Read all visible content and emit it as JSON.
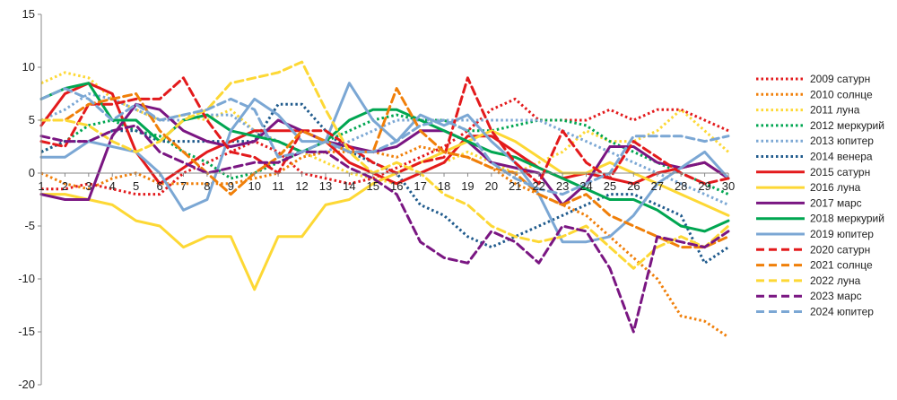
{
  "chart_data": {
    "type": "line",
    "title": "",
    "xlabel": "",
    "ylabel": "",
    "x": [
      1,
      2,
      3,
      4,
      5,
      6,
      7,
      8,
      9,
      10,
      11,
      12,
      13,
      14,
      15,
      16,
      17,
      18,
      19,
      20,
      21,
      22,
      23,
      24,
      25,
      26,
      27,
      28,
      29,
      30
    ],
    "xlim": [
      1,
      30
    ],
    "ylim": [
      -20,
      15
    ],
    "yticks": [
      15,
      10,
      5,
      0,
      -5,
      -10,
      -15,
      -20
    ],
    "grid": false,
    "legend_position": "right",
    "series": [
      {
        "name": "2009 сатурн",
        "color": "#e31a1c",
        "dash": "dot",
        "values": [
          -1.5,
          -1.5,
          -1,
          -1.5,
          -2,
          -2,
          0,
          1,
          2,
          3,
          2,
          0,
          -0.5,
          -1,
          -0.5,
          0.5,
          1.5,
          2.5,
          4,
          6,
          7,
          5,
          5,
          5,
          6,
          5,
          6,
          6,
          5,
          4
        ]
      },
      {
        "name": "2010 солнце",
        "color": "#f07f09",
        "dash": "dot",
        "values": [
          0,
          -1,
          -1.5,
          -0.5,
          0,
          -1,
          -1,
          -1,
          -1,
          -0.5,
          0,
          1.5,
          2,
          2,
          2,
          1.5,
          2.5,
          2,
          1.5,
          0.5,
          -1,
          -2,
          -3,
          -4,
          -6,
          -8,
          -10,
          -13.5,
          -14,
          -15.5
        ]
      },
      {
        "name": "2011 луна",
        "color": "#fdd835",
        "dash": "dot",
        "values": [
          8.5,
          9.5,
          9,
          7,
          6,
          5,
          5.5,
          5,
          6,
          4,
          3,
          2,
          1,
          0,
          -0.5,
          -1,
          0,
          1,
          2,
          1,
          0,
          1,
          2,
          4,
          3,
          3,
          4,
          6,
          4,
          2
        ]
      },
      {
        "name": "2012 меркурий",
        "color": "#00a651",
        "dash": "dot",
        "values": [
          2,
          3,
          4.5,
          5,
          4,
          3.5,
          2,
          1,
          -0.5,
          0,
          1,
          2,
          3,
          4,
          5,
          5.5,
          5,
          5,
          4,
          4,
          4.5,
          5,
          5,
          4.5,
          3,
          2,
          1,
          0,
          -1,
          -2
        ]
      },
      {
        "name": "2013 юпитер",
        "color": "#7ba7d4",
        "dash": "dot",
        "values": [
          5,
          6,
          7.5,
          7,
          6,
          5,
          5,
          5.5,
          5.5,
          4,
          3,
          2,
          2,
          3,
          4,
          5,
          5,
          5,
          5,
          5,
          5,
          5,
          4,
          3,
          2,
          1,
          0,
          -1,
          -2,
          -3
        ]
      },
      {
        "name": "2014 венера",
        "color": "#1f5a8c",
        "dash": "dot",
        "values": [
          2,
          3,
          3,
          4,
          4,
          3,
          3,
          3,
          3,
          3,
          6.5,
          6.5,
          4,
          2,
          1,
          0,
          -3,
          -4,
          -6,
          -7,
          -6,
          -5,
          -4,
          -3,
          -2,
          -2,
          -3,
          -4,
          -8.5,
          -7
        ]
      },
      {
        "name": "2015 сатурн",
        "color": "#e31a1c",
        "dash": "solid",
        "values": [
          4.5,
          7.5,
          8.5,
          7.5,
          2,
          -1,
          0.5,
          2,
          3,
          4,
          4,
          4,
          3,
          1,
          0,
          -1,
          0,
          1,
          3.5,
          3.5,
          2,
          0.5,
          -0.5,
          0,
          -0.5,
          -1,
          0,
          0.5,
          1,
          -0.5
        ]
      },
      {
        "name": "2016 луна",
        "color": "#fdd835",
        "dash": "solid",
        "values": [
          -2,
          -2,
          -2.5,
          -3,
          -4.5,
          -5,
          -7,
          -6,
          -6,
          -11,
          -6,
          -6,
          -3,
          -2.5,
          -1,
          0,
          1,
          2,
          3,
          4,
          3,
          1.5,
          0,
          0,
          1,
          0,
          -1,
          -2,
          -3,
          -4
        ]
      },
      {
        "name": "2017 марс",
        "color": "#7a1682",
        "dash": "solid",
        "values": [
          -2,
          -2.5,
          -2.5,
          3.5,
          6.5,
          6,
          4,
          3,
          2.5,
          3,
          5,
          4,
          3,
          2.5,
          2,
          2.5,
          4,
          4,
          3,
          1,
          0.5,
          0,
          -3,
          -1,
          2.5,
          2.5,
          1,
          0.5,
          1,
          -0.5
        ]
      },
      {
        "name": "2018 меркурий",
        "color": "#00a651",
        "dash": "solid",
        "values": [
          7,
          8,
          8.5,
          5,
          5,
          3,
          5,
          5.5,
          4,
          3.5,
          3,
          2,
          3,
          5,
          6,
          6,
          5,
          4,
          3,
          2,
          1.5,
          0.5,
          -0.5,
          -1.5,
          -2.5,
          -2.5,
          -3.5,
          -5,
          -5.5,
          -4.5
        ]
      },
      {
        "name": "2019 юпитер",
        "color": "#7ba7d4",
        "dash": "solid",
        "values": [
          1.5,
          1.5,
          3,
          2.5,
          2,
          0,
          -3.5,
          -2.5,
          4,
          7,
          5.5,
          3,
          3,
          8.5,
          5,
          3,
          5.5,
          4.5,
          5.5,
          3,
          1,
          -2,
          -6.5,
          -6.5,
          -6,
          -4,
          -1,
          0.5,
          2,
          -0.5
        ]
      },
      {
        "name": "2020 сатурн",
        "color": "#e31a1c",
        "dash": "dash",
        "values": [
          3,
          2.5,
          6.5,
          6.5,
          7,
          7,
          9,
          5,
          2,
          1.5,
          0,
          4,
          4,
          2.5,
          1,
          0,
          1,
          1.5,
          9,
          4,
          1,
          -1,
          4,
          1,
          -0.5,
          3,
          1.5,
          0,
          -1,
          -0.5
        ]
      },
      {
        "name": "2021 солнце",
        "color": "#f07f09",
        "dash": "dash",
        "values": [
          5,
          5,
          6.5,
          7,
          7.5,
          4,
          2,
          0,
          -2,
          0,
          1.5,
          4,
          3,
          2,
          2,
          8,
          4,
          2,
          1.5,
          0.5,
          0,
          -2,
          -3,
          -2,
          -4,
          -5,
          -6,
          -7,
          -7,
          -6
        ]
      },
      {
        "name": "2022 луна",
        "color": "#fdd835",
        "dash": "dash",
        "values": [
          5,
          5,
          4.5,
          3,
          2,
          3,
          5,
          6,
          8.5,
          9,
          9.5,
          10.5,
          6,
          2,
          0,
          1,
          0,
          -2,
          -3,
          -5,
          -6,
          -6.5,
          -6,
          -5,
          -7,
          -9,
          -7,
          -6,
          -7,
          -5
        ]
      },
      {
        "name": "2023 марс",
        "color": "#7a1682",
        "dash": "dash",
        "values": [
          3.5,
          3,
          3,
          4,
          4.5,
          2,
          1,
          0,
          0.5,
          1,
          1,
          2,
          2,
          0.5,
          -0.5,
          -2,
          -6.5,
          -8,
          -8.5,
          -5.5,
          -6.5,
          -8.5,
          -5,
          -5.5,
          -9,
          -15,
          -6,
          -6.5,
          -7,
          -5.5
        ]
      },
      {
        "name": "2024 юпитер",
        "color": "#7ba7d4",
        "dash": "dash",
        "values": [
          7,
          8,
          7,
          5,
          6.5,
          5,
          5.5,
          6,
          7,
          6,
          1.5,
          2,
          3,
          2,
          2,
          3,
          4.5,
          5,
          4,
          1,
          -0.5,
          -1.5,
          -2,
          -1,
          0,
          3.5,
          3.5,
          3.5,
          3,
          3.5
        ]
      }
    ]
  }
}
